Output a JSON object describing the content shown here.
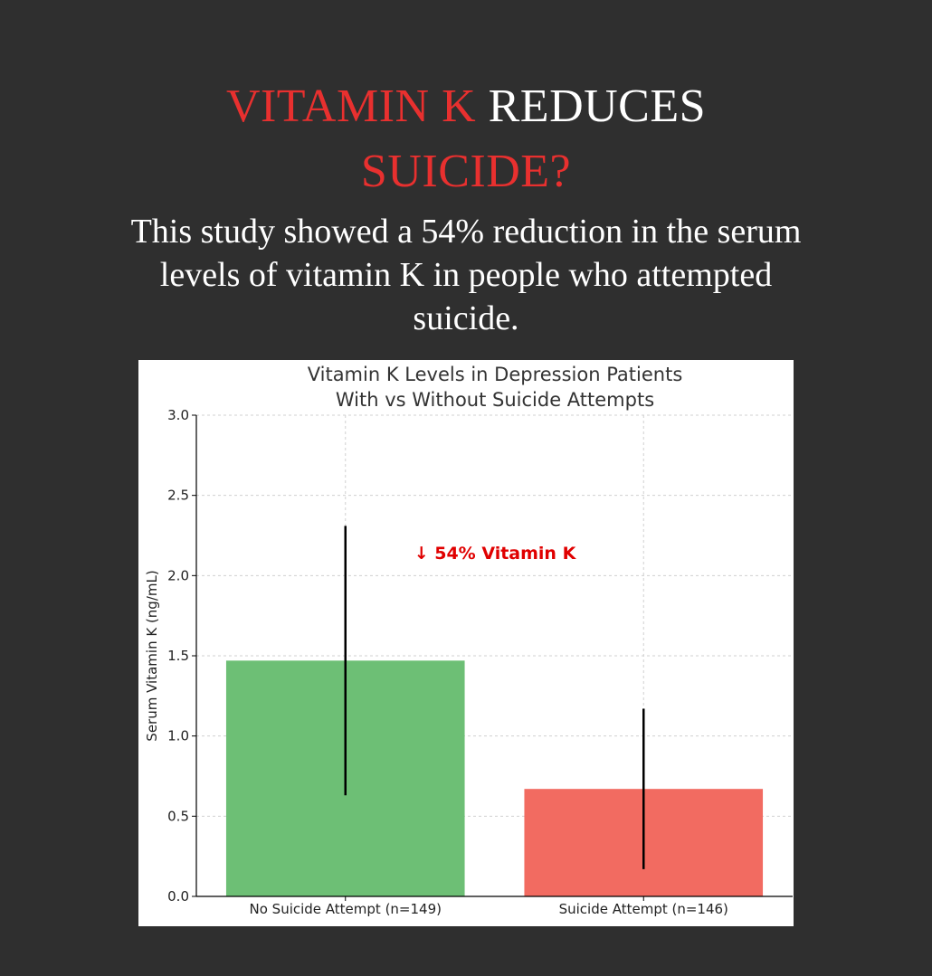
{
  "headline": {
    "part1": "VITAMIN K",
    "part2": "REDUCES",
    "part3": "SUICIDE?"
  },
  "subtitle": "This study showed a 54% reduction in the serum levels of vitamin K in people who attempted suicide.",
  "colors": {
    "background": "#2f2f2f",
    "headline_red": "#e8302f",
    "bar_no_attempt": "#6dbf75",
    "bar_attempt": "#f26b61",
    "annotation_red": "#e00000"
  },
  "chart_data": {
    "type": "bar",
    "title": "Vitamin K Levels in Depression Patients\nWith vs Without Suicide Attempts",
    "title_lines": [
      "Vitamin K Levels in Depression Patients",
      "With vs Without Suicide Attempts"
    ],
    "xlabel": "",
    "ylabel": "Serum Vitamin K (ng/mL)",
    "categories": [
      "No Suicide Attempt (n=149)",
      "Suicide Attempt (n=146)"
    ],
    "values": [
      1.47,
      0.67
    ],
    "error": [
      0.84,
      0.5
    ],
    "ylim": [
      0,
      3.0
    ],
    "yticks": [
      "0.0",
      "0.5",
      "1.0",
      "1.5",
      "2.0",
      "2.5",
      "3.0"
    ],
    "grid": true,
    "annotation": "↓ 54% Vitamin K"
  }
}
